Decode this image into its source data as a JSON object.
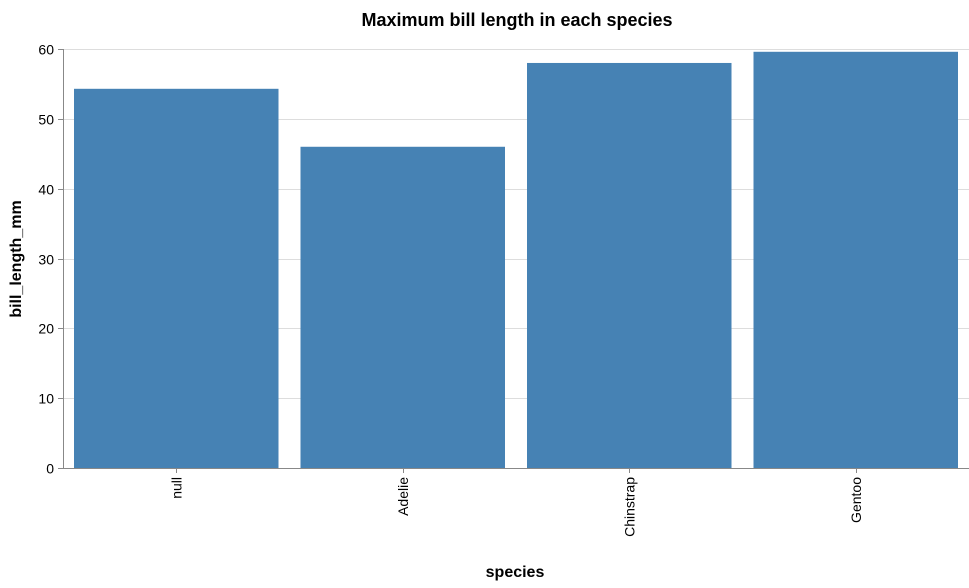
{
  "chart_data": {
    "type": "bar",
    "title": "Maximum bill length in each species",
    "xlabel": "species",
    "ylabel": "bill_length_mm",
    "categories": [
      "null",
      "Adelie",
      "Chinstrap",
      "Gentoo"
    ],
    "values": [
      54.3,
      46.0,
      58.0,
      59.6
    ],
    "ylim": [
      0,
      60
    ],
    "yticks": [
      "0",
      "10",
      "20",
      "30",
      "40",
      "50",
      "60"
    ],
    "grid": true,
    "bar_color": "#4682b4"
  }
}
